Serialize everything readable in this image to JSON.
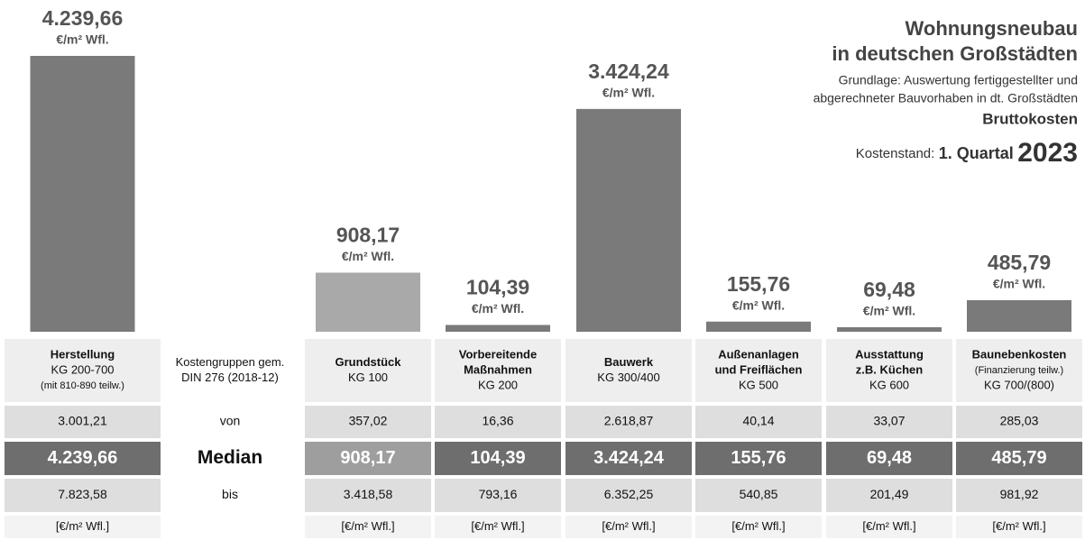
{
  "chart_data": {
    "type": "bar",
    "title": [
      "Wohnungsneubau",
      "in deutschen Großstädten"
    ],
    "subtitle": [
      "Grundlage: Auswertung fertiggestellter und",
      "abgerechneter Bauvorhaben in dt. Großstädten"
    ],
    "cost_basis": "Bruttokosten",
    "cost_date": {
      "label": "Kostenstand:",
      "quarter": "1. Quartal",
      "year": "2023"
    },
    "categories": [
      "Herstellung",
      "Grundstück",
      "Vorbereitende Maßnahmen",
      "Bauwerk",
      "Außenanlagen und Freiflächen",
      "Ausstattung z.B. Küchen",
      "Baunebenkosten"
    ],
    "values": [
      4239.66,
      908.17,
      104.39,
      3424.24,
      155.76,
      69.48,
      485.79
    ],
    "value_labels": [
      "4.239,66",
      "908,17",
      "104,39",
      "3.424,24",
      "155,76",
      "69,48",
      "485,79"
    ],
    "unit": "€/m² Wfl.",
    "colors": [
      "#7a7a7a",
      "#a9a9a9",
      "#7a7a7a",
      "#7a7a7a",
      "#7a7a7a",
      "#7a7a7a",
      "#7a7a7a"
    ]
  },
  "table": {
    "header": [
      [
        "Herstellung",
        "KG 200-700",
        "(mit 810-890 teilw.)"
      ],
      [
        "Kostengruppen gem.",
        "DIN 276 (2018-12)"
      ],
      [
        "Grundstück",
        "KG 100"
      ],
      [
        "Vorbereitende",
        "Maßnahmen",
        "KG 200"
      ],
      [
        "Bauwerk",
        "KG 300/400"
      ],
      [
        "Außenanlagen",
        "und Freiflächen",
        "KG 500"
      ],
      [
        "Ausstattung",
        "z.B. Küchen",
        "KG 600"
      ],
      [
        "Baunebenkosten",
        "(Finanzierung teilw.)",
        "KG 700/(800)"
      ]
    ],
    "rows": [
      {
        "label": "von",
        "values": [
          "3.001,21",
          "357,02",
          "16,36",
          "2.618,87",
          "40,14",
          "33,07",
          "285,03"
        ]
      },
      {
        "label": "Median"
      },
      {
        "label": "bis",
        "values": [
          "7.823,58",
          "3.418,58",
          "793,16",
          "6.352,25",
          "540,85",
          "201,49",
          "981,92"
        ]
      },
      {
        "unit": "[€/m² Wfl.]"
      }
    ]
  }
}
